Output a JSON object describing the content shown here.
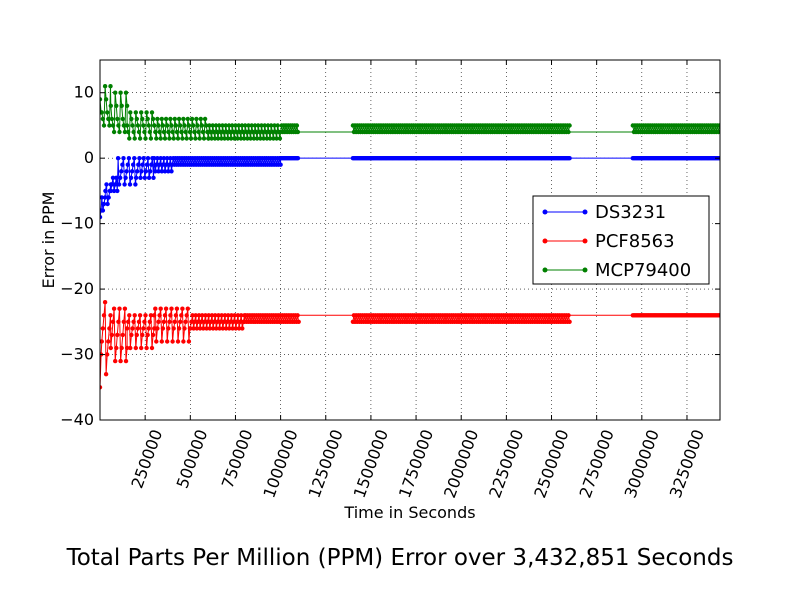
{
  "chart_data": {
    "type": "line",
    "title": "Total Parts Per Million (PPM) Error over 3,432,851 Seconds",
    "xlabel": "Time in Seconds",
    "ylabel": "Error in PPM",
    "xlim": [
      0,
      3432851
    ],
    "ylim": [
      -40,
      15
    ],
    "xticks": [
      250000,
      500000,
      750000,
      1000000,
      1250000,
      1500000,
      1750000,
      2000000,
      2250000,
      2500000,
      2750000,
      3000000,
      3250000
    ],
    "xtick_labels": [
      "250000",
      "500000",
      "750000",
      "1000000",
      "1250000",
      "1500000",
      "1750000",
      "2000000",
      "2250000",
      "2500000",
      "2750000",
      "3000000",
      "3250000"
    ],
    "yticks": [
      10,
      0,
      -10,
      -20,
      -30,
      -40
    ],
    "ytick_labels": [
      "10",
      "0",
      "−10",
      "−20",
      "−30",
      "−40"
    ],
    "grid": true,
    "legend": "center-right",
    "series": [
      {
        "name": "DS3231",
        "color": "#0000ff",
        "segments": [
          {
            "x0": 0,
            "x1": 1100000,
            "step": 6000,
            "bands": [
              {
                "x0": 0,
                "x1": 10000,
                "v": [
                  -9,
                  -8,
                  -6
                ]
              },
              {
                "x0": 10000,
                "x1": 30000,
                "v": [
                  -8,
                  -7,
                  -6
                ]
              },
              {
                "x0": 30000,
                "x1": 60000,
                "v": [
                  -7,
                  -6,
                  -5,
                  -4
                ]
              },
              {
                "x0": 60000,
                "x1": 100000,
                "v": [
                  -5,
                  -4,
                  -3
                ]
              },
              {
                "x0": 100000,
                "x1": 200000,
                "v": [
                  -4,
                  -3,
                  -2,
                  -1,
                  0
                ]
              },
              {
                "x0": 200000,
                "x1": 300000,
                "v": [
                  -3,
                  -2,
                  -1,
                  0
                ]
              },
              {
                "x0": 300000,
                "x1": 400000,
                "v": [
                  -2,
                  -1,
                  0
                ]
              },
              {
                "x0": 400000,
                "x1": 1000000,
                "v": [
                  -1,
                  0
                ]
              },
              {
                "x0": 1000000,
                "x1": 1100000,
                "v": [
                  0
                ]
              }
            ]
          },
          {
            "x0": 1400000,
            "x1": 2600000,
            "step": 6000,
            "bands": [
              {
                "x0": 1400000,
                "x1": 2600000,
                "v": [
                  0
                ]
              }
            ]
          },
          {
            "x0": 2950000,
            "x1": 3432851,
            "step": 6000,
            "bands": [
              {
                "x0": 2950000,
                "x1": 3432851,
                "v": [
                  0
                ]
              }
            ]
          }
        ]
      },
      {
        "name": "PCF8563",
        "color": "#ff0000",
        "segments": [
          {
            "x0": 0,
            "x1": 1100000,
            "step": 6000,
            "bands": [
              {
                "x0": 0,
                "x1": 10000,
                "v": [
                  -35,
                  -30,
                  -25,
                  -19
                ]
              },
              {
                "x0": 10000,
                "x1": 60000,
                "v": [
                  -33,
                  -30,
                  -28,
                  -26,
                  -24,
                  -22
                ]
              },
              {
                "x0": 60000,
                "x1": 150000,
                "v": [
                  -31,
                  -29,
                  -27,
                  -25,
                  -23
                ]
              },
              {
                "x0": 150000,
                "x1": 300000,
                "v": [
                  -29,
                  -27,
                  -26,
                  -25,
                  -24
                ]
              },
              {
                "x0": 300000,
                "x1": 500000,
                "v": [
                  -28,
                  -26,
                  -25,
                  -24,
                  -23
                ]
              },
              {
                "x0": 500000,
                "x1": 800000,
                "v": [
                  -26,
                  -25,
                  -24
                ]
              },
              {
                "x0": 800000,
                "x1": 1100000,
                "v": [
                  -25,
                  -24
                ]
              }
            ]
          },
          {
            "x0": 1400000,
            "x1": 2600000,
            "step": 6000,
            "bands": [
              {
                "x0": 1400000,
                "x1": 2600000,
                "v": [
                  -25,
                  -24
                ]
              }
            ]
          },
          {
            "x0": 2950000,
            "x1": 3432851,
            "step": 6000,
            "bands": [
              {
                "x0": 2950000,
                "x1": 3432851,
                "v": [
                  -24
                ]
              }
            ]
          }
        ]
      },
      {
        "name": "MCP79400",
        "color": "#008000",
        "segments": [
          {
            "x0": 0,
            "x1": 1100000,
            "step": 6000,
            "bands": [
              {
                "x0": 0,
                "x1": 10000,
                "v": [
                  9,
                  7,
                  5,
                  1
                ]
              },
              {
                "x0": 10000,
                "x1": 60000,
                "v": [
                  11,
                  9,
                  7,
                  6,
                  5
                ]
              },
              {
                "x0": 60000,
                "x1": 150000,
                "v": [
                  10,
                  8,
                  6,
                  5,
                  4
                ]
              },
              {
                "x0": 150000,
                "x1": 300000,
                "v": [
                  7,
                  6,
                  5,
                  4,
                  3
                ]
              },
              {
                "x0": 300000,
                "x1": 600000,
                "v": [
                  6,
                  5,
                  4,
                  3
                ]
              },
              {
                "x0": 600000,
                "x1": 1000000,
                "v": [
                  5,
                  4,
                  3
                ]
              },
              {
                "x0": 1000000,
                "x1": 1100000,
                "v": [
                  5,
                  4
                ]
              }
            ]
          },
          {
            "x0": 1400000,
            "x1": 2600000,
            "step": 6000,
            "bands": [
              {
                "x0": 1400000,
                "x1": 2600000,
                "v": [
                  5,
                  4
                ]
              }
            ]
          },
          {
            "x0": 2950000,
            "x1": 3432851,
            "step": 6000,
            "bands": [
              {
                "x0": 2950000,
                "x1": 3432851,
                "v": [
                  5,
                  4
                ]
              }
            ]
          }
        ]
      }
    ]
  }
}
